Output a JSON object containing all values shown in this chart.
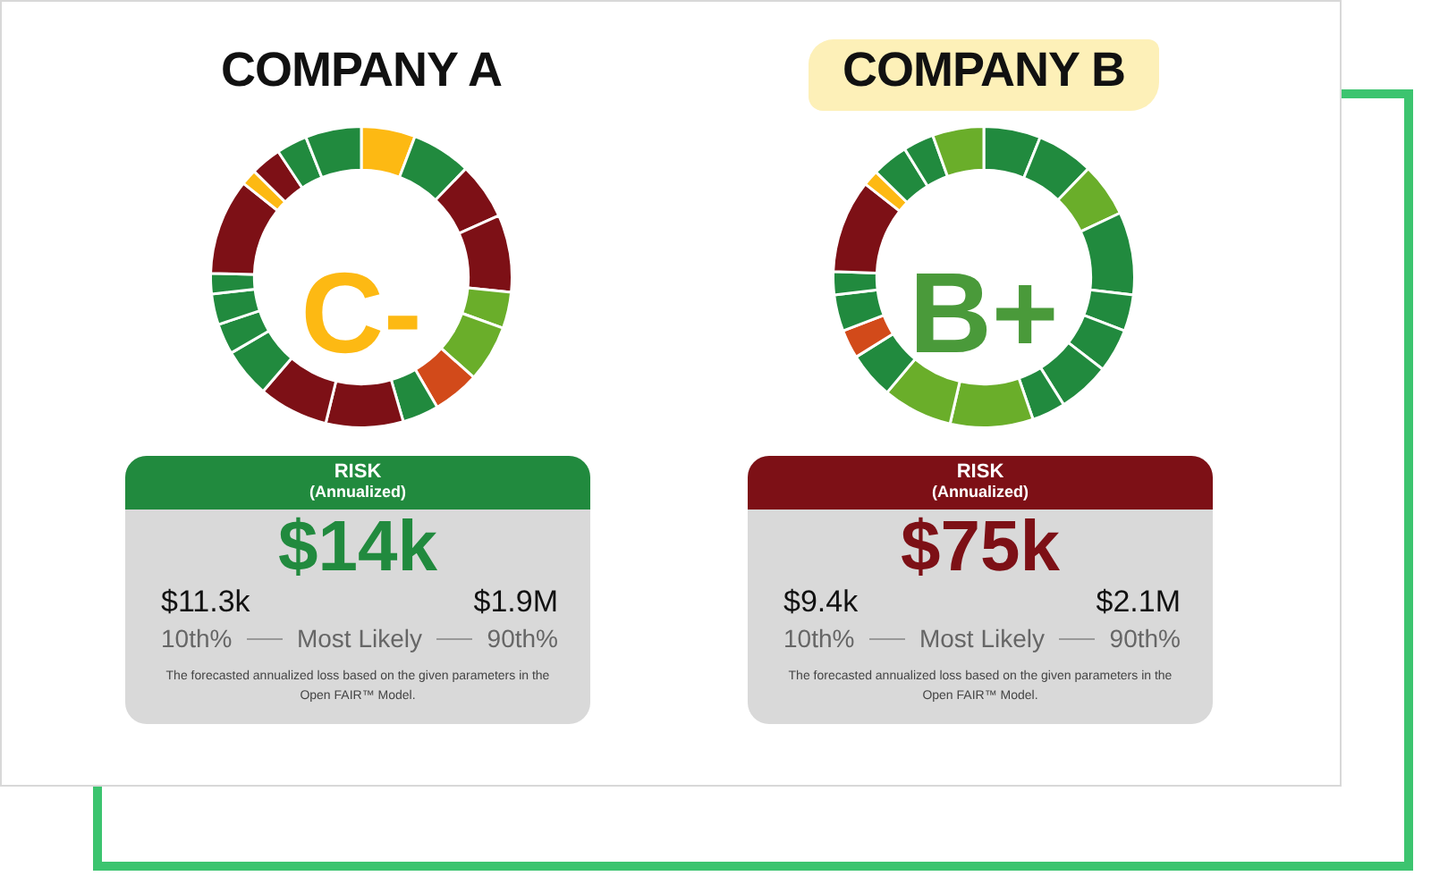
{
  "chart_data": [
    {
      "type": "donut",
      "title": "COMPANY A",
      "categories": [
        null,
        null,
        null,
        null,
        null,
        null,
        null,
        null,
        null,
        null,
        null,
        null,
        null,
        null,
        null,
        null,
        null,
        null,
        null
      ],
      "values": [
        5.8,
        6.4,
        6.1,
        8.3,
        3.9,
        6.1,
        5.0,
        3.9,
        8.3,
        7.5,
        5.3,
        3.3,
        3.3,
        2.2,
        10.3,
        1.7,
        3.3,
        3.3,
        6.0
      ],
      "colors": [
        "#fdb913",
        "#218a3e",
        "#7d1016",
        "#7d1016",
        "#6aae2a",
        "#6aae2a",
        "#d24a1a",
        "#218a3e",
        "#7d1016",
        "#7d1016",
        "#218a3e",
        "#218a3e",
        "#218a3e",
        "#218a3e",
        "#7d1016",
        "#fdb913",
        "#7d1016",
        "#218a3e",
        "#218a3e"
      ],
      "annotations": [
        "C-"
      ]
    },
    {
      "type": "other",
      "title": "RISK",
      "subtitle": "(Annualized)",
      "color": "#218a3e",
      "annotations": [
        "$14k",
        "$11.3k",
        "$1.9M",
        "10th%",
        "Most Likely",
        "90th%",
        "The forecasted annualized loss based on the given parameters in the Open FAIR™ Model."
      ]
    },
    {
      "type": "donut",
      "title": "COMPANY B",
      "categories": [
        null,
        null,
        null,
        null,
        null,
        null,
        null,
        null,
        null,
        null,
        null,
        null,
        null,
        null,
        null,
        null,
        null,
        null,
        null
      ],
      "values": [
        6.1,
        6.1,
        5.8,
        8.9,
        3.9,
        4.7,
        5.6,
        3.6,
        8.9,
        7.5,
        5.0,
        3.1,
        3.9,
        2.5,
        10.0,
        1.7,
        3.9,
        3.3,
        5.5
      ],
      "colors": [
        "#218a3e",
        "#218a3e",
        "#6aae2a",
        "#218a3e",
        "#218a3e",
        "#218a3e",
        "#218a3e",
        "#218a3e",
        "#6aae2a",
        "#6aae2a",
        "#218a3e",
        "#d24a1a",
        "#218a3e",
        "#218a3e",
        "#7d1016",
        "#fdb913",
        "#218a3e",
        "#218a3e",
        "#6aae2a"
      ],
      "annotations": [
        "B+"
      ]
    },
    {
      "type": "other",
      "title": "RISK",
      "subtitle": "(Annualized)",
      "color": "#7d1016",
      "annotations": [
        "$75k",
        "$9.4k",
        "$2.1M",
        "10th%",
        "Most Likely",
        "90th%",
        "The forecasted annualized loss based on the given parameters in the Open FAIR™ Model."
      ]
    }
  ]
}
